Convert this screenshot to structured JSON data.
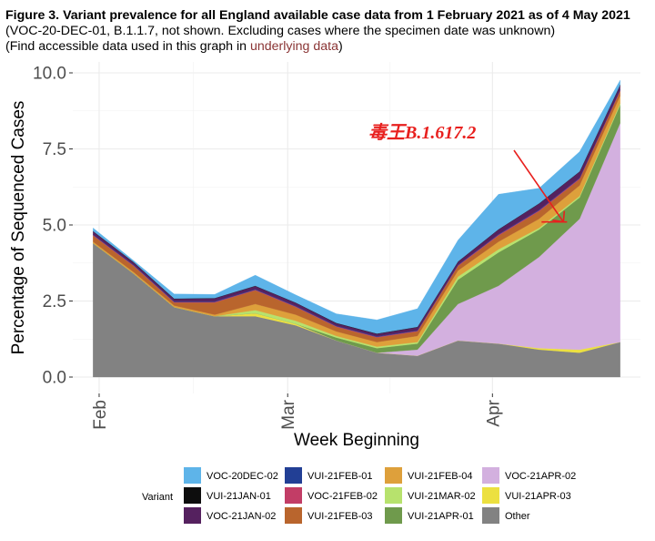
{
  "header": {
    "title": "Figure 3. Variant prevalence for all England available case data from 1 February 2021 as of 4 May 2021",
    "subtitle_prefix": "(VOC-20-DEC-01, B.1.1.7, not shown. Excluding cases where the specimen date was unknown)",
    "accessible_prefix": "(Find accessible data used in this graph in ",
    "accessible_link": "underlying data",
    "accessible_suffix": ")"
  },
  "chart_data": {
    "type": "area",
    "stacked": true,
    "title": "",
    "xlabel": "Week Beginning",
    "ylabel": "Percentage of Sequenced Cases",
    "ylim": [
      0,
      10
    ],
    "yticks": [
      "0.0",
      "2.5",
      "5.0",
      "7.5",
      "10.0"
    ],
    "ytick_values": [
      0,
      2.5,
      5,
      7.5,
      10
    ],
    "xticks": [
      "Feb",
      "Mar",
      "Apr"
    ],
    "xtick_weeks": [
      1.15,
      5.8,
      10.85
    ],
    "x_weeks": [
      1,
      2,
      3,
      4,
      5,
      6,
      7,
      8,
      9,
      10,
      11,
      12,
      13,
      14
    ],
    "series": [
      {
        "name": "Other",
        "color": "#828282",
        "values": [
          4.4,
          3.4,
          2.3,
          2.0,
          2.0,
          1.7,
          1.2,
          0.8,
          0.7,
          1.2,
          1.1,
          0.9,
          0.8,
          1.15
        ]
      },
      {
        "name": "VUI-21APR-03",
        "color": "#ece040",
        "values": [
          0,
          0,
          0,
          0,
          0.1,
          0.05,
          0,
          0,
          0,
          0,
          0,
          0.05,
          0.1,
          0
        ]
      },
      {
        "name": "VOC-21APR-02",
        "color": "#d3b0df",
        "values": [
          0,
          0,
          0,
          0,
          0,
          0,
          0,
          0,
          0.2,
          1.2,
          1.9,
          3.0,
          4.3,
          7.2
        ]
      },
      {
        "name": "VUI-21APR-01",
        "color": "#6f9a4c",
        "values": [
          0,
          0,
          0,
          0,
          0,
          0,
          0.1,
          0.15,
          0.2,
          0.8,
          1.1,
          0.9,
          0.7,
          0.6
        ]
      },
      {
        "name": "VUI-21MAR-02",
        "color": "#b7e26d",
        "values": [
          0,
          0,
          0,
          0,
          0.1,
          0.1,
          0.05,
          0.05,
          0.05,
          0.1,
          0.1,
          0.05,
          0.05,
          0.05
        ]
      },
      {
        "name": "VUI-21FEB-04",
        "color": "#dea03b",
        "values": [
          0.05,
          0.05,
          0.05,
          0.05,
          0.2,
          0.2,
          0.15,
          0.15,
          0.2,
          0.2,
          0.25,
          0.3,
          0.35,
          0.25
        ]
      },
      {
        "name": "VUI-21FEB-03",
        "color": "#b9652d",
        "values": [
          0.2,
          0.2,
          0.1,
          0.4,
          0.45,
          0.25,
          0.15,
          0.15,
          0.15,
          0.15,
          0.2,
          0.25,
          0.2,
          0.15
        ]
      },
      {
        "name": "VOC-21FEB-02",
        "color": "#c23d66",
        "values": [
          0.02,
          0.02,
          0.02,
          0.02,
          0.02,
          0.02,
          0.02,
          0.02,
          0.02,
          0.02,
          0.03,
          0.03,
          0.03,
          0.03
        ]
      },
      {
        "name": "VUI-21FEB-01",
        "color": "#223f95",
        "values": [
          0.02,
          0.02,
          0.02,
          0.02,
          0.02,
          0.02,
          0.02,
          0.02,
          0.02,
          0.02,
          0.02,
          0.02,
          0.02,
          0.02
        ]
      },
      {
        "name": "VOC-21JAN-02",
        "color": "#55215f",
        "values": [
          0.1,
          0.08,
          0.08,
          0.1,
          0.1,
          0.1,
          0.08,
          0.08,
          0.1,
          0.1,
          0.15,
          0.2,
          0.2,
          0.15
        ]
      },
      {
        "name": "VUI-21JAN-01",
        "color": "#0d0d0d",
        "values": [
          0.01,
          0.01,
          0.01,
          0.01,
          0.01,
          0.01,
          0.01,
          0.01,
          0.01,
          0.01,
          0.01,
          0.01,
          0.01,
          0.01
        ]
      },
      {
        "name": "VOC-20DEC-02",
        "color": "#5eb4e9",
        "values": [
          0.1,
          0.05,
          0.15,
          0.12,
          0.35,
          0.25,
          0.3,
          0.45,
          0.6,
          0.7,
          1.15,
          0.5,
          0.65,
          0.15
        ]
      }
    ],
    "legend": {
      "title": "Variant",
      "placement": "bottom",
      "columns": [
        [
          "VOC-20DEC-02",
          "VUI-21JAN-01",
          "VOC-21JAN-02"
        ],
        [
          "VUI-21FEB-01",
          "VOC-21FEB-02",
          "VUI-21FEB-03"
        ],
        [
          "VUI-21FEB-04",
          "VUI-21MAR-02",
          "VUI-21APR-01"
        ],
        [
          "VOC-21APR-02",
          "VUI-21APR-03",
          "Other"
        ]
      ]
    },
    "annotation": {
      "text": "毒王B.1.617.2",
      "color": "#e8201e",
      "target_week": 12.6,
      "target_value": 5.1
    }
  }
}
